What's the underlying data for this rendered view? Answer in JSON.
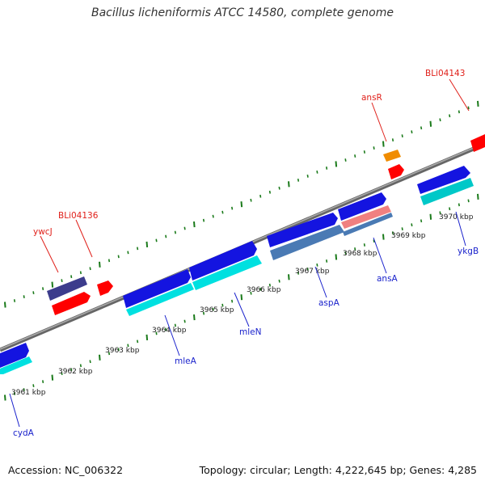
{
  "title": "Bacillus licheniformis ATCC 14580, complete genome",
  "footer": {
    "accession": "Accession: NC_006322",
    "topology": "Topology: circular; Length: 4,222,645 bp; Genes: 4,285"
  },
  "colors": {
    "backbone": "#888888",
    "tick": "#1a7a1a",
    "cds_forward": "#1414e0",
    "cds_forward_shadow": "#00e5e5",
    "rna_forward": "#ff0000",
    "gene_purple": "#3c3c8c",
    "gene_orange": "#f08c00",
    "gene_steel": "#4a7ab4",
    "gene_pink": "#f08080",
    "label_forward": "#e0201a",
    "label_reverse": "#1a22cc"
  },
  "scale_labels": [
    "3961 kbp",
    "3962 kbp",
    "3963 kbp",
    "3964 kbp",
    "3965 kbp",
    "3966 kbp",
    "3967 kbp",
    "3968 kbp",
    "3969 kbp",
    "3970 kbp"
  ],
  "genes": [
    {
      "name": "cydA",
      "strand": "reverse"
    },
    {
      "name": "ywcJ",
      "strand": "forward"
    },
    {
      "name": "BLi04136",
      "strand": "forward"
    },
    {
      "name": "mleA",
      "strand": "reverse"
    },
    {
      "name": "mleN",
      "strand": "reverse"
    },
    {
      "name": "aspA",
      "strand": "reverse"
    },
    {
      "name": "ansA",
      "strand": "reverse"
    },
    {
      "name": "ansR",
      "strand": "forward"
    },
    {
      "name": "BLi04143",
      "strand": "forward"
    },
    {
      "name": "ykgB",
      "strand": "reverse"
    }
  ]
}
